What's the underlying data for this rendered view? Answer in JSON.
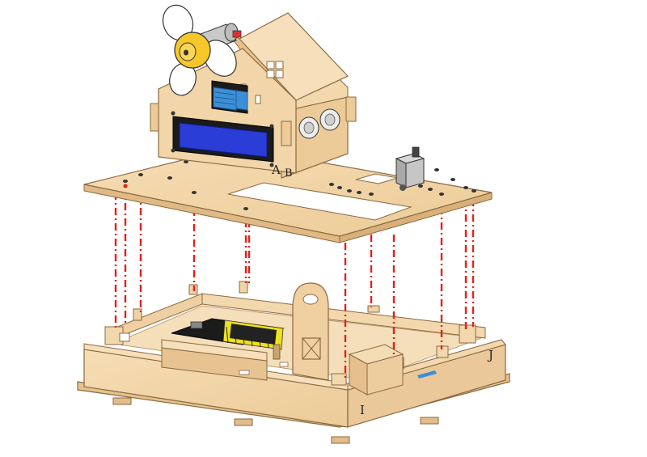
{
  "diagram": {
    "part_labels": {
      "a": "A",
      "b": "B",
      "i": "I",
      "j": "J"
    },
    "colors": {
      "wood": "#f0d3a6",
      "wood_edge": "#b88e5c",
      "guide_line": "#e0211b",
      "lcd_screen": "#2a3dd6",
      "sensor_blue": "#3c8fd6",
      "fan_yellow": "#f7c628",
      "board_black": "#1b1b1b",
      "header_yellow": "#f0e21a"
    },
    "icons": {
      "fan": "fan-icon",
      "lcd": "lcd-module-icon",
      "sensor": "temperature-humidity-sensor-icon",
      "ultrasonic": "ultrasonic-sensor-icon",
      "servo": "servo-motor-icon",
      "board": "controller-board-icon"
    }
  }
}
